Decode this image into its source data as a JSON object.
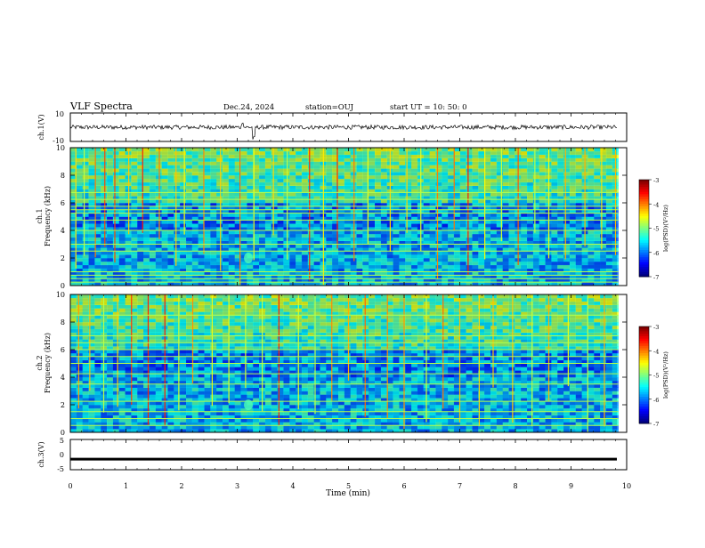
{
  "header": {
    "title": "VLF Spectra",
    "date": "Dec.24, 2024",
    "station": "station=OUJ",
    "start": "start  UT =   10: 50: 0"
  },
  "chart_data": [
    {
      "type": "line",
      "name": "ch1-waveform",
      "ylabel": "ch.1(V)",
      "ylim": [
        -10,
        10
      ],
      "yticks": [
        "10",
        "-10"
      ],
      "baseline_v": 0,
      "notes": "noisy waveform around 0 V with spikes near 3.1 and 3.3 min"
    },
    {
      "type": "heatmap",
      "name": "ch1-spectrogram",
      "ylabel": [
        "ch.1",
        "Frequency  (kHz)"
      ],
      "ylim": [
        0,
        10
      ],
      "yticks": [
        "0",
        "2",
        "4",
        "6",
        "8",
        "10"
      ],
      "xlim_min": [
        0,
        9.85
      ],
      "colorbar": {
        "label": "log(PSD)(V²/Hz)",
        "range": [
          -7,
          -3
        ],
        "ticks": [
          "-3",
          "-4",
          "-5",
          "-6",
          "-7"
        ]
      },
      "hum_lines_khz": [
        0.25,
        0.5,
        0.75,
        1.0,
        2.5,
        3.0,
        4.0,
        4.75,
        5.25,
        5.5,
        5.75,
        6.25,
        6.75
      ],
      "sferic_minutes": [
        0.1,
        0.25,
        0.45,
        0.62,
        0.8,
        1.05,
        1.3,
        1.6,
        1.9,
        2.05,
        2.4,
        2.7,
        3.05,
        3.3,
        3.65,
        3.9,
        4.3,
        4.55,
        4.8,
        5.1,
        5.35,
        5.75,
        6.05,
        6.3,
        6.6,
        6.9,
        7.15,
        7.45,
        7.75,
        8.05,
        8.35,
        8.6,
        8.9,
        9.25,
        9.55,
        9.8
      ],
      "emission": {
        "minute": 3.2,
        "frequency_khz": 2.0
      }
    },
    {
      "type": "heatmap",
      "name": "ch2-spectrogram",
      "ylabel": [
        "ch.2",
        "Frequency  (kHz)"
      ],
      "ylim": [
        0,
        10
      ],
      "yticks": [
        "0",
        "2",
        "4",
        "6",
        "8",
        "10"
      ],
      "xlim_min": [
        0,
        9.85
      ],
      "colorbar": {
        "label": "log(PSD)(V²/Hz)",
        "range": [
          -7,
          -3
        ],
        "ticks": [
          "-3",
          "-4",
          "-5",
          "-6",
          "-7"
        ]
      },
      "hum_lines_khz": [
        0.5,
        1.0,
        1.5,
        2.25,
        3.5,
        4.25,
        5.0,
        5.5,
        6.0,
        6.5,
        7.0,
        8.5
      ],
      "sferic_minutes": [
        0.15,
        0.35,
        0.6,
        0.85,
        1.1,
        1.4,
        1.7,
        1.95,
        2.2,
        2.55,
        2.85,
        3.15,
        3.45,
        3.75,
        4.1,
        4.4,
        4.7,
        5.0,
        5.3,
        5.7,
        6.0,
        6.4,
        6.7,
        7.0,
        7.35,
        7.6,
        7.95,
        8.3,
        8.6,
        8.95,
        9.3,
        9.6
      ],
      "emission": {
        "minute": 3.2,
        "frequency_khz": 2.0
      }
    },
    {
      "type": "line",
      "name": "ch3-waveform",
      "ylabel": "ch.3(V)",
      "xlabel": "Time  (min)",
      "ylim": [
        -5,
        5
      ],
      "yticks": [
        "5",
        "0",
        "-5"
      ],
      "xlim": [
        0,
        10
      ],
      "xticks": [
        "0",
        "1",
        "2",
        "3",
        "4",
        "5",
        "6",
        "7",
        "8",
        "9",
        "10"
      ],
      "level_v": -1.5
    }
  ]
}
